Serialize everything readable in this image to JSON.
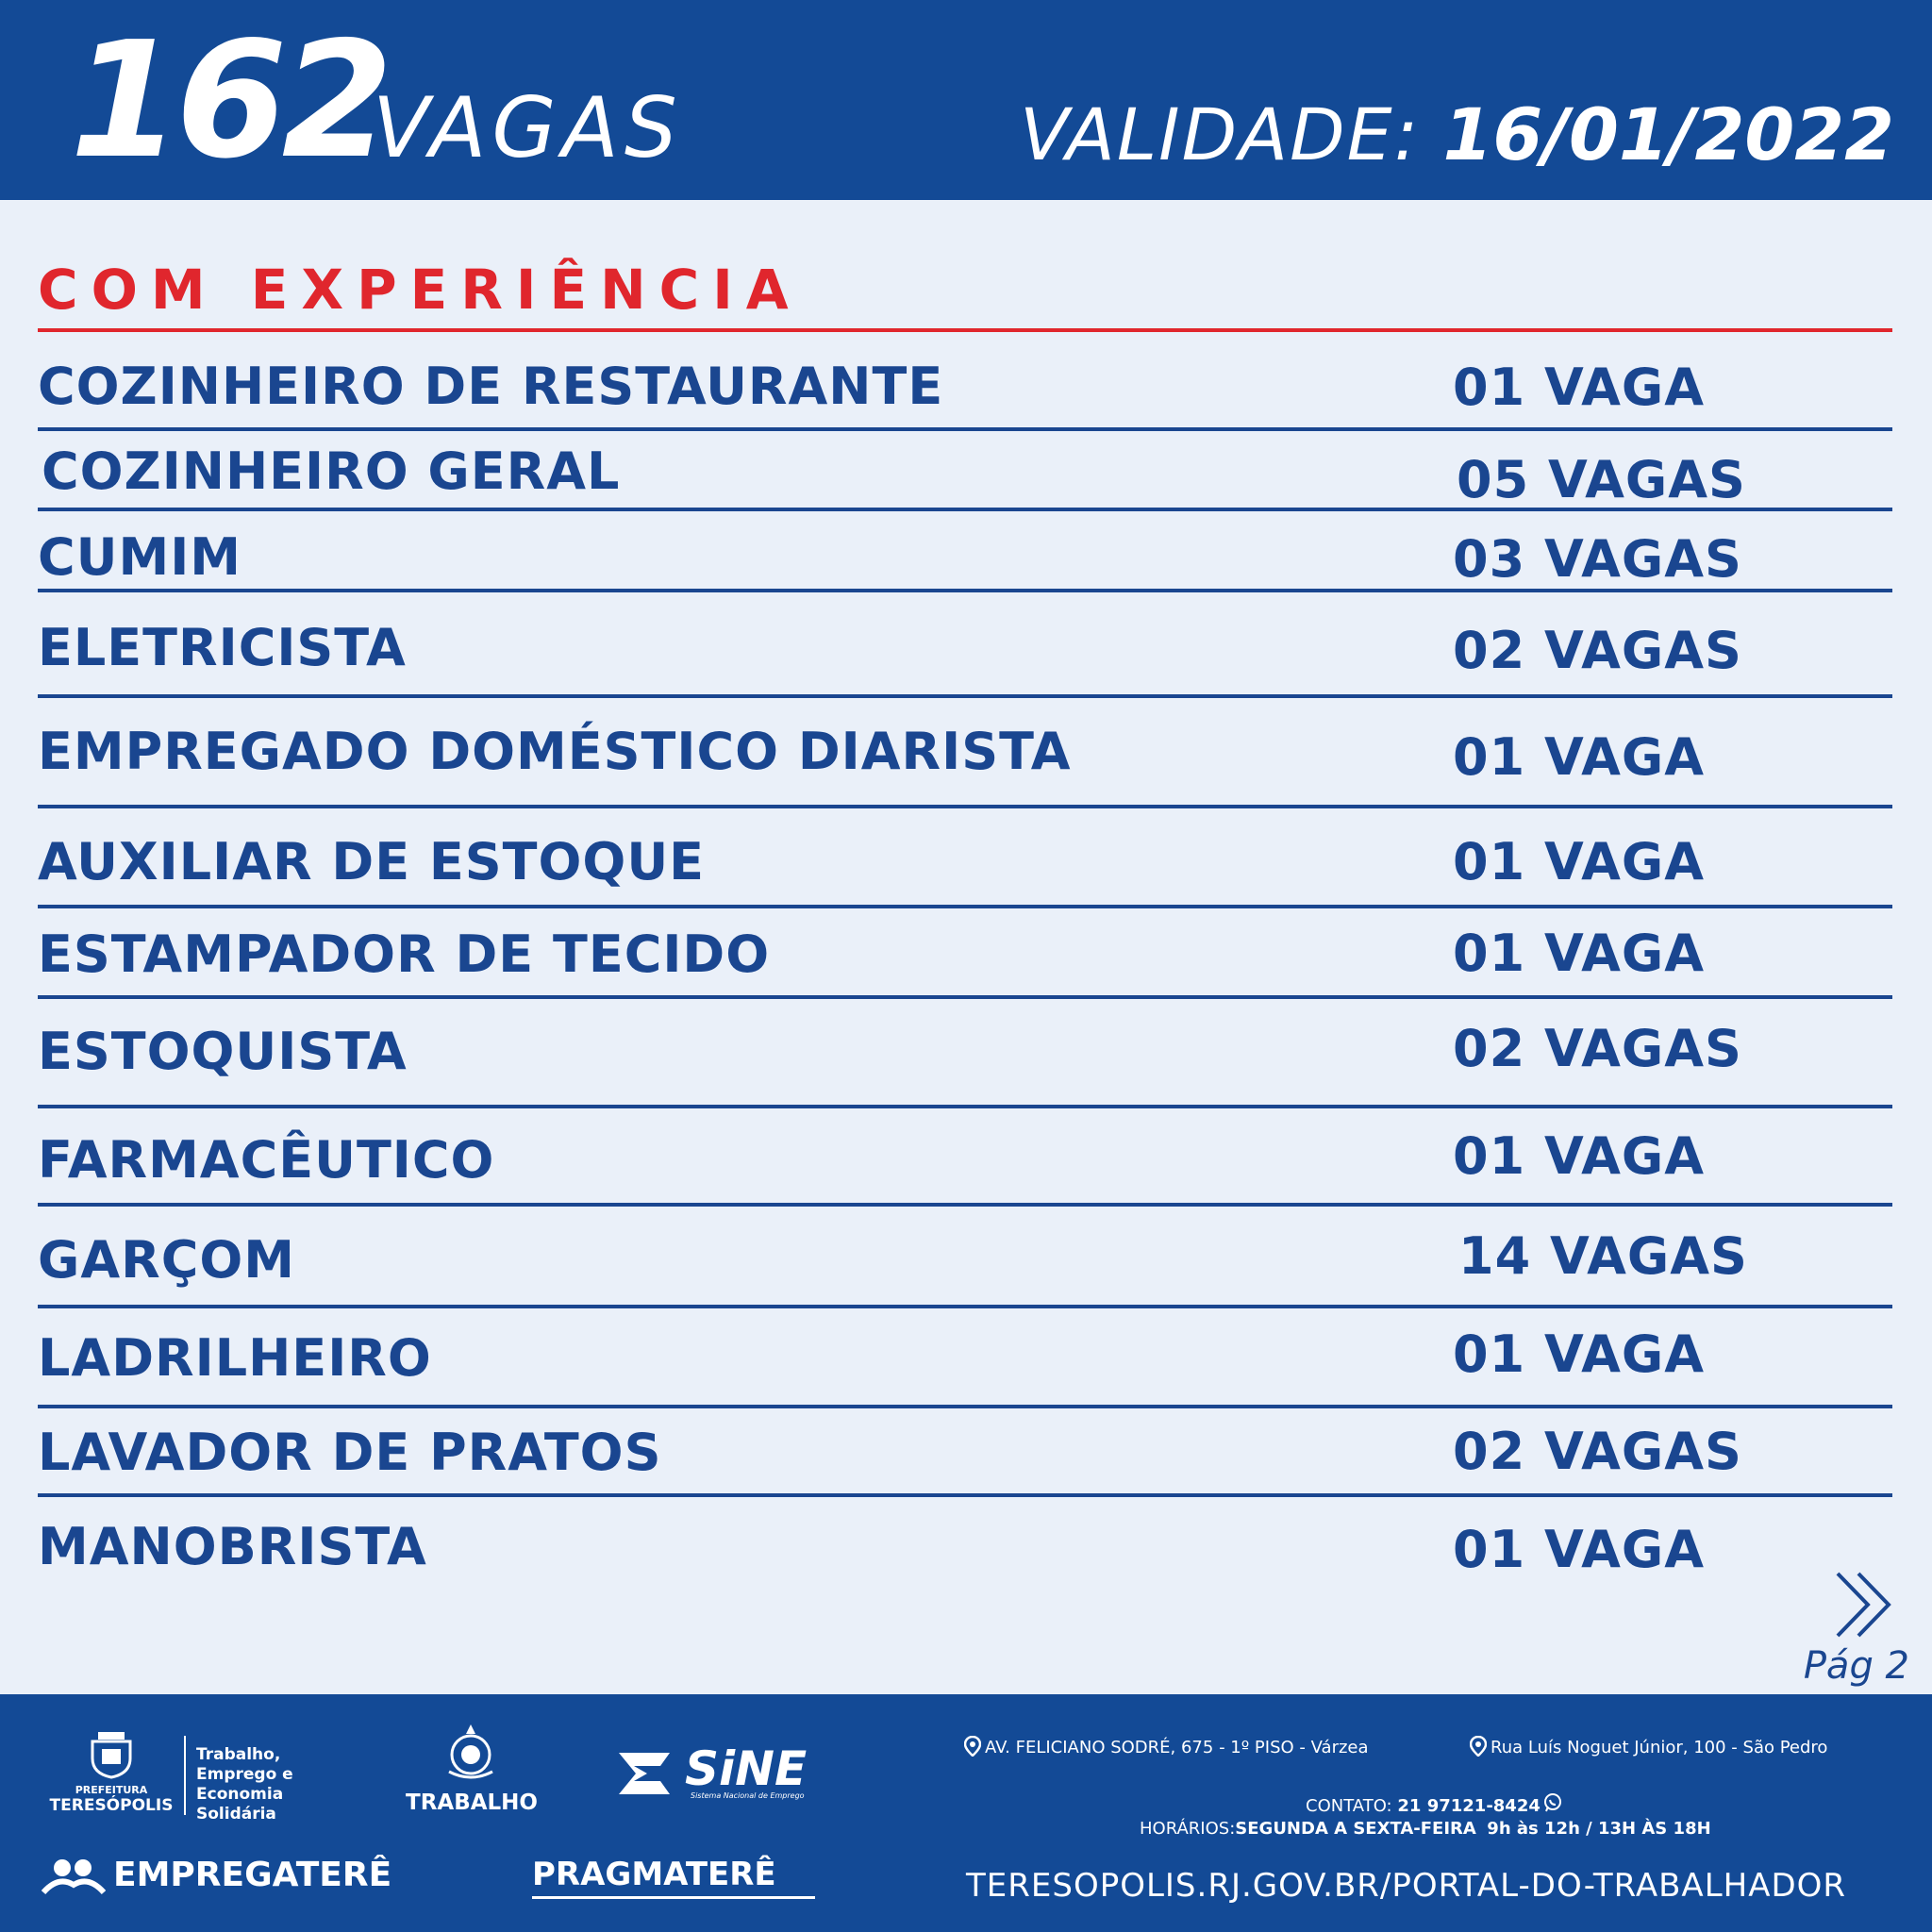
{
  "header": {
    "count": "162",
    "vagas_label": "VAGAS",
    "validity_label": "VALIDADE:",
    "validity_date": "16/01/2022"
  },
  "section": {
    "title": "COM EXPERIÊNCIA"
  },
  "jobs": [
    {
      "name": "COZINHEIRO DE RESTAURANTE",
      "qty": "01 VAGA"
    },
    {
      "name": "COZINHEIRO GERAL",
      "qty": "05 VAGAS"
    },
    {
      "name": "CUMIM",
      "qty": "03 VAGAS"
    },
    {
      "name": "ELETRICISTA",
      "qty": "02 VAGAS"
    },
    {
      "name": "EMPREGADO DOMÉSTICO DIARISTA",
      "qty": "01 VAGA"
    },
    {
      "name": "AUXILIAR DE ESTOQUE",
      "qty": "01 VAGA"
    },
    {
      "name": "ESTAMPADOR DE TECIDO",
      "qty": "01 VAGA"
    },
    {
      "name": "ESTOQUISTA",
      "qty": "02 VAGAS"
    },
    {
      "name": "FARMACÊUTICO",
      "qty": "01 VAGA"
    },
    {
      "name": "GARÇOM",
      "qty": "14 VAGAS"
    },
    {
      "name": "LADRILHEIRO",
      "qty": "01 VAGA"
    },
    {
      "name": "LAVADOR DE PRATOS",
      "qty": "02 VAGAS"
    },
    {
      "name": "MANOBRISTA",
      "qty": "01 VAGA"
    }
  ],
  "pagination": {
    "page_label": "Pág 2",
    "next_icon": "double-chevron-right-icon"
  },
  "footer": {
    "prefeitura_small": "PREFEITURA",
    "prefeitura_city": "TERESÓPOLIS",
    "secretaria": "Trabalho, Emprego e Economia Solidária",
    "trabalho_label": "TRABALHO",
    "sine_word": "SiNE",
    "sine_sub": "Sistema Nacional de Emprego",
    "empregatere": "EMPREGATERÊ",
    "pragmatere": "PRAGMATERÊ",
    "address_1": "AV. FELICIANO SODRÉ, 675 - 1º PISO - Várzea",
    "address_2": "Rua Luís Noguet Júnior, 100 - São Pedro",
    "contact_label": "CONTATO:",
    "contact_phone": "21 97121-8424",
    "hours_label": "HORÁRIOS:",
    "hours_days": "SEGUNDA A SEXTA-FEIRA",
    "hours_times": "9h às 12h / 13H ÀS 18H",
    "website": "TERESOPOLIS.RJ.GOV.BR/PORTAL-DO-TRABALHADOR"
  },
  "colors": {
    "header_bg": "#134a96",
    "page_bg": "#eaf0f9",
    "text_blue": "#1a4690",
    "accent_red": "#e0262d",
    "white": "#ffffff"
  }
}
